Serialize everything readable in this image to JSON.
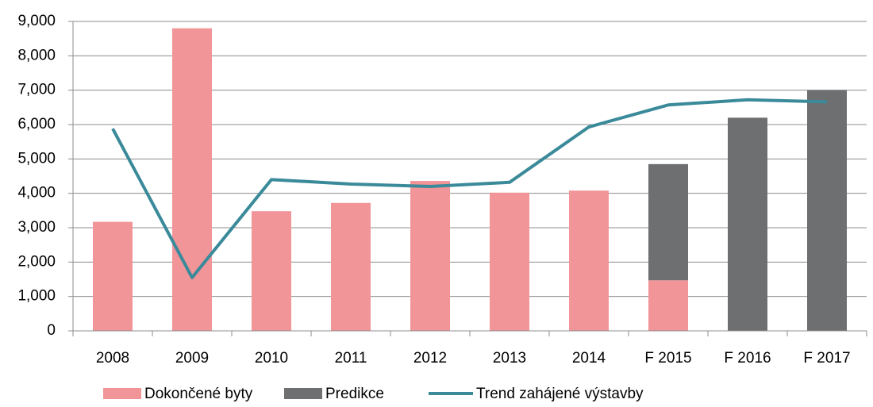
{
  "chart_data": {
    "type": "bar",
    "categories": [
      "2008",
      "2009",
      "2010",
      "2011",
      "2012",
      "2013",
      "2014",
      "F 2015",
      "F 2016",
      "F 2017"
    ],
    "series": [
      {
        "name": "Dokončené byty",
        "color": "#f29599",
        "type": "bar",
        "values": [
          3170,
          8800,
          3480,
          3720,
          4360,
          4020,
          4080,
          1470,
          null,
          null
        ]
      },
      {
        "name": "Predikce",
        "color": "#6d6f71",
        "type": "bar",
        "values": [
          null,
          null,
          null,
          null,
          null,
          null,
          null,
          3380,
          6200,
          7000
        ]
      },
      {
        "name": "Trend zahájené výstavby",
        "color": "#3a8a9a",
        "type": "line",
        "values": [
          5880,
          1550,
          4400,
          4270,
          4200,
          4320,
          5930,
          6570,
          6720,
          6660
        ]
      }
    ],
    "stacked": true,
    "ylim": [
      0,
      9000
    ],
    "yticks": [
      0,
      {
        "value": 1000,
        "label": "1,000"
      },
      {
        "value": 2000,
        "label": "2,000"
      },
      {
        "value": 3000,
        "label": "3,000"
      },
      {
        "value": 4000,
        "label": "4,000"
      },
      {
        "value": 5000,
        "label": "5,000"
      },
      {
        "value": 6000,
        "label": "6,000"
      },
      {
        "value": 7000,
        "label": "7,000"
      },
      {
        "value": 8000,
        "label": "8,000"
      },
      {
        "value": 9000,
        "label": "9,000"
      }
    ],
    "grid": true,
    "legend": "bottom"
  }
}
